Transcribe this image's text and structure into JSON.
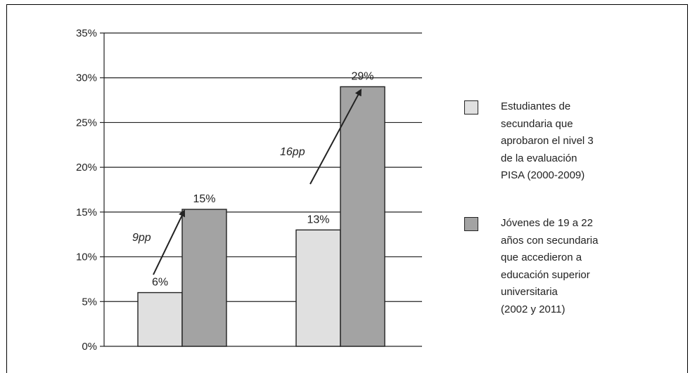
{
  "chart_data": {
    "type": "bar",
    "title": "",
    "xlabel": "",
    "ylabel": "",
    "ylim": [
      0,
      35
    ],
    "y_ticks": [
      "0%",
      "5%",
      "10%",
      "15%",
      "20%",
      "25%",
      "30%",
      "35%"
    ],
    "y_tick_values": [
      0,
      5,
      10,
      15,
      20,
      25,
      30,
      35
    ],
    "grid": true,
    "legend_position": "right",
    "categories": [
      "",
      ""
    ],
    "series": [
      {
        "name": "Estudiantes de\nsecundaria que\naprobaron el nivel 3\nde la evaluación\nPISA (2000-2009)",
        "values": [
          6,
          13
        ],
        "labels": [
          "6%",
          "13%"
        ],
        "color": "#e0e0e0"
      },
      {
        "name": "Jóvenes de 19 a 22\naños con secundaria\nque accedieron a\neducación superior\nuniversitaria\n(2002 y 2011)",
        "values": [
          15.3,
          29
        ],
        "labels": [
          "15%",
          "29%"
        ],
        "color": "#a3a3a3"
      }
    ],
    "annotations": [
      {
        "text": "9pp",
        "group": 0
      },
      {
        "text": "16pp",
        "group": 1
      }
    ]
  }
}
